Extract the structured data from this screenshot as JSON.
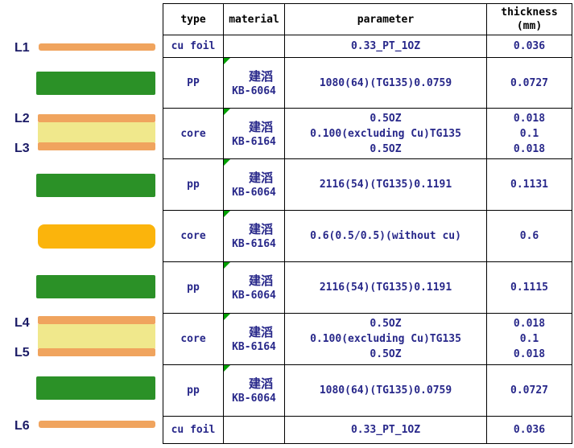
{
  "diagram": {
    "l_labels": [
      "L1",
      "L2",
      "L3",
      "L4",
      "L5",
      "L6"
    ],
    "stack_sequence": [
      "cu-foil-L1",
      "pp-prepreg",
      "core-clad-L2-L3",
      "pp-prepreg",
      "core-no-cu",
      "pp-prepreg",
      "core-clad-L4-L5",
      "pp-prepreg",
      "cu-foil-L6"
    ]
  },
  "table": {
    "headers": {
      "type": "type",
      "material": "material",
      "parameter": "parameter",
      "thickness": "thickness",
      "thickness_unit": "(mm)"
    },
    "rows": [
      {
        "type": "cu foil",
        "material": null,
        "marker": false,
        "parameter": "0.33_PT_1OZ",
        "thickness": "0.036"
      },
      {
        "type": "PP",
        "material": {
          "brand": "建滔",
          "model": "KB-6064"
        },
        "marker": true,
        "parameter": "1080(64)(TG135)0.0759",
        "thickness": "0.0727"
      },
      {
        "type": "core",
        "material": {
          "brand": "建滔",
          "model": "KB-6164"
        },
        "marker": true,
        "parameter": [
          "0.5OZ",
          "0.100(excluding Cu)TG135",
          "0.5OZ"
        ],
        "thickness": [
          "0.018",
          "0.1",
          "0.018"
        ]
      },
      {
        "type": "pp",
        "material": {
          "brand": "建滔",
          "model": "KB-6064"
        },
        "marker": true,
        "parameter": "2116(54)(TG135)0.1191",
        "thickness": "0.1131"
      },
      {
        "type": "core",
        "material": {
          "brand": "建滔",
          "model": "KB-6164"
        },
        "marker": true,
        "parameter": "0.6(0.5/0.5)(without cu)",
        "thickness": "0.6"
      },
      {
        "type": "pp",
        "material": {
          "brand": "建滔",
          "model": "KB-6064"
        },
        "marker": true,
        "parameter": "2116(54)(TG135)0.1191",
        "thickness": "0.1115"
      },
      {
        "type": "core",
        "material": {
          "brand": "建滔",
          "model": "KB-6164"
        },
        "marker": true,
        "parameter": [
          "0.5OZ",
          "0.100(excluding Cu)TG135",
          "0.5OZ"
        ],
        "thickness": [
          "0.018",
          "0.1",
          "0.018"
        ]
      },
      {
        "type": "pp",
        "material": {
          "brand": "建滔",
          "model": "KB-6064"
        },
        "marker": true,
        "parameter": "1080(64)(TG135)0.0759",
        "thickness": "0.0727"
      },
      {
        "type": "cu foil",
        "material": null,
        "marker": false,
        "parameter": "0.33_PT_1OZ",
        "thickness": "0.036"
      }
    ]
  },
  "colors": {
    "cu_foil": "#F0A45E",
    "pp_green": "#2B9127",
    "core_yellow": "#F0E88C",
    "core_amber": "#FBB40C",
    "text_navy": "#28288A",
    "label_navy": "#1B1B66",
    "marker_green": "#00A000",
    "border_black": "#000000"
  }
}
